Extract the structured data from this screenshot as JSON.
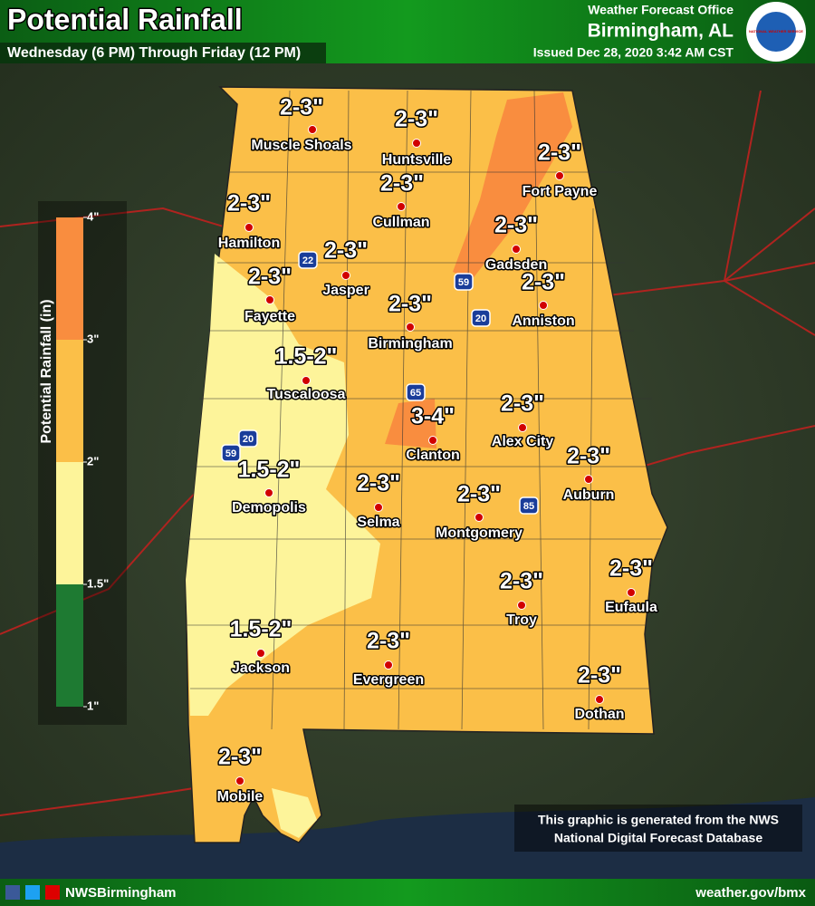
{
  "header": {
    "title": "Potential Rainfall",
    "subtitle": "Wednesday (6 PM) Through Friday (12 PM)",
    "office_line": "Weather Forecast Office",
    "office": "Birmingham, AL",
    "issued": "Issued Dec 28, 2020 3:42 AM CST",
    "logo_text": "NATIONAL WEATHER SERVICE"
  },
  "legend": {
    "title": "Potential Rainfall (in)",
    "ticks": [
      {
        "value": 4,
        "label": "4\""
      },
      {
        "value": 3,
        "label": "3\""
      },
      {
        "value": 2,
        "label": "2\""
      },
      {
        "value": 1.5,
        "label": "1.5\""
      },
      {
        "value": 1,
        "label": "1\""
      }
    ],
    "colors": [
      "#f98d3f",
      "#fbbf48",
      "#fdf49a",
      "#1e7a32"
    ]
  },
  "cities": [
    {
      "name": "Muscle Shoals",
      "amount": "2-3\""
    },
    {
      "name": "Huntsville",
      "amount": "2-3\""
    },
    {
      "name": "Fort Payne",
      "amount": "2-3\""
    },
    {
      "name": "Cullman",
      "amount": "2-3\""
    },
    {
      "name": "Hamilton",
      "amount": "2-3\""
    },
    {
      "name": "Gadsden",
      "amount": "2-3\""
    },
    {
      "name": "Jasper",
      "amount": "2-3\""
    },
    {
      "name": "Fayette",
      "amount": "2-3\""
    },
    {
      "name": "Anniston",
      "amount": "2-3\""
    },
    {
      "name": "Birmingham",
      "amount": "2-3\""
    },
    {
      "name": "Tuscaloosa",
      "amount": "1.5-2\""
    },
    {
      "name": "Alex City",
      "amount": "2-3\""
    },
    {
      "name": "Clanton",
      "amount": "3-4\""
    },
    {
      "name": "Auburn",
      "amount": "2-3\""
    },
    {
      "name": "Demopolis",
      "amount": "1.5-2\""
    },
    {
      "name": "Selma",
      "amount": "2-3\""
    },
    {
      "name": "Montgomery",
      "amount": "2-3\""
    },
    {
      "name": "Eufaula",
      "amount": "2-3\""
    },
    {
      "name": "Troy",
      "amount": "2-3\""
    },
    {
      "name": "Jackson",
      "amount": "1.5-2\""
    },
    {
      "name": "Evergreen",
      "amount": "2-3\""
    },
    {
      "name": "Dothan",
      "amount": "2-3\""
    },
    {
      "name": "Mobile",
      "amount": "2-3\""
    }
  ],
  "interstates": [
    "22",
    "59",
    "20",
    "65",
    "20",
    "59",
    "85"
  ],
  "note": {
    "line1": "This graphic is generated from the NWS",
    "line2": "National Digital Forecast Database"
  },
  "footer": {
    "social": "NWSBirmingham",
    "url": "weather.gov/bmx"
  }
}
